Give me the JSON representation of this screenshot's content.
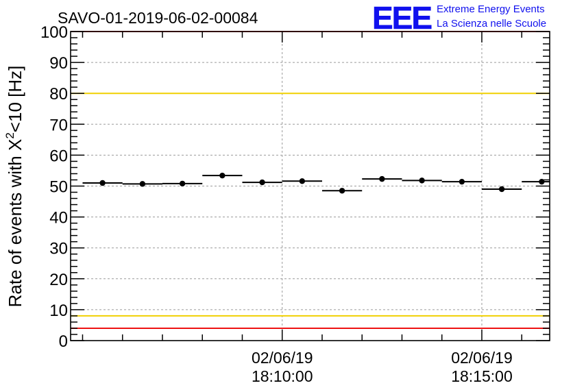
{
  "chart_data": {
    "type": "scatter",
    "title": "SAVO-01-2019-06-02-00084",
    "ylabel_main": "Rate of events with X",
    "ylabel_sup": "2",
    "ylabel_rest": "<10 [Hz]",
    "xlabel": "",
    "ylim": [
      0,
      100
    ],
    "yticks": [
      0,
      10,
      20,
      30,
      40,
      50,
      60,
      70,
      80,
      90,
      100
    ],
    "yticks_labels": [
      "0",
      "10",
      "20",
      "30",
      "40",
      "50",
      "60",
      "70",
      "80",
      "90",
      "100"
    ],
    "x_axis_unit": "minutes after 18:06:00",
    "xlim": [
      -1.3,
      10.7
    ],
    "x_labels": [
      {
        "x": 4,
        "date": "02/06/19",
        "time": "18:10:00"
      },
      {
        "x": 9,
        "date": "02/06/19",
        "time": "18:15:00"
      }
    ],
    "bin_width": 1,
    "points": [
      {
        "x": -0.5,
        "y": 51.0
      },
      {
        "x": 0.5,
        "y": 50.7
      },
      {
        "x": 1.5,
        "y": 50.8
      },
      {
        "x": 2.5,
        "y": 53.4
      },
      {
        "x": 3.5,
        "y": 51.2
      },
      {
        "x": 4.5,
        "y": 51.6
      },
      {
        "x": 5.5,
        "y": 48.5
      },
      {
        "x": 6.5,
        "y": 52.3
      },
      {
        "x": 7.5,
        "y": 51.8
      },
      {
        "x": 8.5,
        "y": 51.4
      },
      {
        "x": 9.5,
        "y": 49.0
      },
      {
        "x": 10.5,
        "y": 51.4
      }
    ],
    "reference_lines": [
      {
        "y": 100,
        "color": "#ee1111"
      },
      {
        "y": 80,
        "color": "#f0d000"
      },
      {
        "y": 8,
        "color": "#f0d000"
      },
      {
        "y": 4,
        "color": "#ee1111"
      }
    ],
    "grid": true
  },
  "logo": {
    "mark": "EEE",
    "line1": "Extreme Energy Events",
    "line2": "La Scienza nelle Scuole"
  }
}
